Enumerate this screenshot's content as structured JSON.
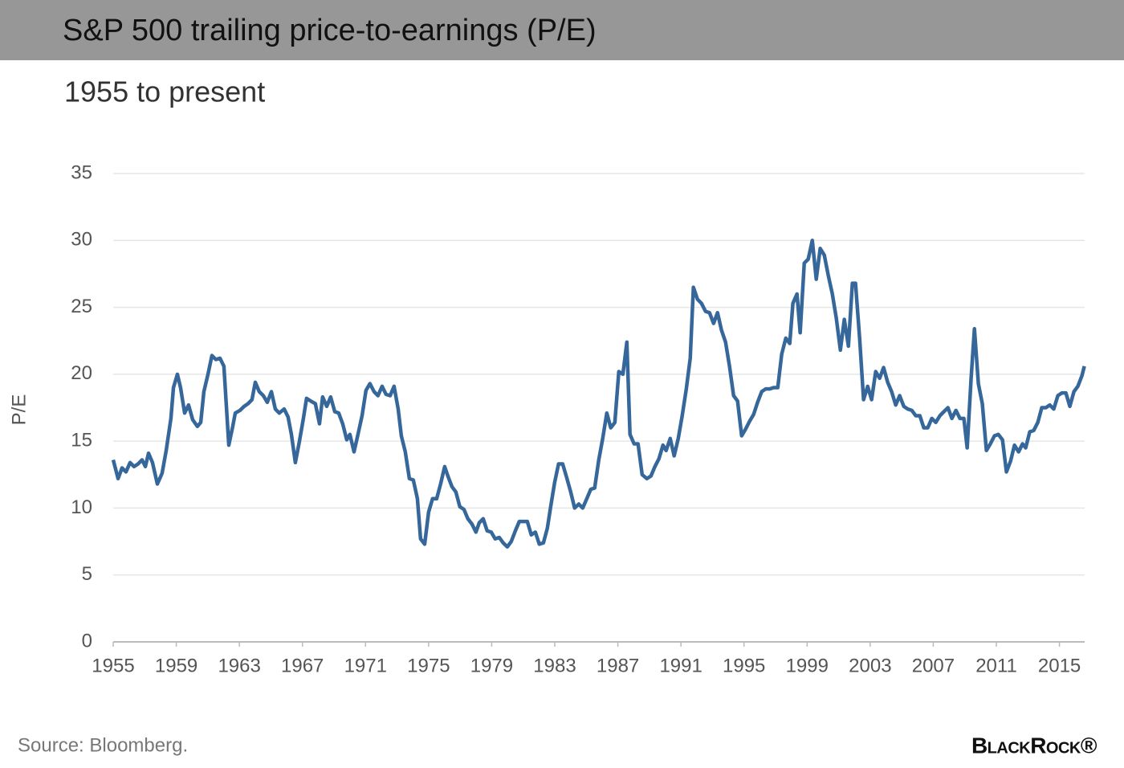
{
  "chart_data": {
    "type": "line",
    "title": "S&P 500 trailing price-to-earnings (P/E)",
    "subtitle": "1955 to present",
    "y_label": "P/E",
    "source": "Source: Bloomberg.",
    "logo": "BlackRock®",
    "grid": true,
    "xlim": [
      1955,
      2016.6
    ],
    "xticks": [
      1955,
      1959,
      1963,
      1967,
      1971,
      1975,
      1979,
      1983,
      1987,
      1991,
      1995,
      1999,
      2003,
      2007,
      2011,
      2015
    ],
    "ylim": [
      0,
      35
    ],
    "yticks": [
      0,
      5,
      10,
      15,
      20,
      25,
      30,
      35
    ],
    "x": [
      1955.0,
      1955.31,
      1955.56,
      1955.81,
      1956.07,
      1956.32,
      1956.58,
      1956.83,
      1957.04,
      1957.24,
      1957.49,
      1957.8,
      1958.1,
      1958.36,
      1958.66,
      1958.82,
      1959.07,
      1959.27,
      1959.53,
      1959.78,
      1960.04,
      1960.34,
      1960.55,
      1960.75,
      1961.01,
      1961.26,
      1961.51,
      1961.77,
      1962.02,
      1962.33,
      1962.58,
      1962.74,
      1963.04,
      1963.3,
      1963.55,
      1963.8,
      1964.01,
      1964.26,
      1964.52,
      1964.77,
      1965.03,
      1965.28,
      1965.53,
      1965.84,
      1966.09,
      1966.3,
      1966.55,
      1966.81,
      1967.06,
      1967.26,
      1967.52,
      1967.82,
      1968.08,
      1968.28,
      1968.54,
      1968.79,
      1969.05,
      1969.3,
      1969.55,
      1969.81,
      1970.01,
      1970.27,
      1970.52,
      1970.78,
      1971.03,
      1971.28,
      1971.54,
      1971.79,
      1972.05,
      1972.3,
      1972.56,
      1972.81,
      1973.07,
      1973.27,
      1973.52,
      1973.78,
      1974.03,
      1974.29,
      1974.49,
      1974.75,
      1975.0,
      1975.25,
      1975.51,
      1975.76,
      1976.02,
      1976.22,
      1976.48,
      1976.73,
      1976.98,
      1977.24,
      1977.49,
      1977.75,
      1978.0,
      1978.21,
      1978.46,
      1978.71,
      1978.97,
      1979.22,
      1979.48,
      1979.73,
      1979.99,
      1980.24,
      1980.5,
      1980.75,
      1981.01,
      1981.26,
      1981.51,
      1981.77,
      1982.02,
      1982.28,
      1982.53,
      1982.74,
      1982.99,
      1983.24,
      1983.5,
      1983.75,
      1984.01,
      1984.26,
      1984.52,
      1984.77,
      1985.03,
      1985.28,
      1985.53,
      1985.79,
      1986.04,
      1986.3,
      1986.55,
      1986.81,
      1987.06,
      1987.32,
      1987.57,
      1987.77,
      1988.03,
      1988.28,
      1988.54,
      1988.84,
      1989.1,
      1989.35,
      1989.61,
      1989.86,
      1990.06,
      1990.32,
      1990.57,
      1990.83,
      1991.08,
      1991.34,
      1991.59,
      1991.79,
      1992.05,
      1992.3,
      1992.56,
      1992.81,
      1993.07,
      1993.32,
      1993.57,
      1993.83,
      1994.08,
      1994.34,
      1994.59,
      1994.85,
      1995.1,
      1995.36,
      1995.61,
      1995.86,
      1996.12,
      1996.37,
      1996.63,
      1996.88,
      1997.14,
      1997.39,
      1997.65,
      1997.9,
      1998.1,
      1998.36,
      1998.56,
      1998.82,
      1999.07,
      1999.33,
      1999.58,
      1999.83,
      2000.09,
      2000.34,
      2000.6,
      2000.85,
      2001.11,
      2001.36,
      2001.62,
      2001.87,
      2002.07,
      2002.33,
      2002.58,
      2002.84,
      2003.09,
      2003.35,
      2003.6,
      2003.85,
      2004.11,
      2004.36,
      2004.62,
      2004.87,
      2005.13,
      2005.38,
      2005.64,
      2005.89,
      2006.15,
      2006.4,
      2006.65,
      2006.91,
      2007.16,
      2007.42,
      2007.67,
      2007.93,
      2008.18,
      2008.44,
      2008.69,
      2008.94,
      2009.15,
      2009.4,
      2009.61,
      2009.86,
      2010.11,
      2010.37,
      2010.62,
      2010.88,
      2011.13,
      2011.39,
      2011.64,
      2011.9,
      2012.15,
      2012.41,
      2012.66,
      2012.86,
      2013.12,
      2013.37,
      2013.63,
      2013.88,
      2014.14,
      2014.39,
      2014.64,
      2014.9,
      2015.15,
      2015.41,
      2015.66,
      2015.92,
      2016.17,
      2016.43,
      2016.58
    ],
    "series": [
      {
        "name": "P/E",
        "color": "#36679a",
        "values": [
          13.6,
          12.2,
          13.0,
          12.7,
          13.4,
          13.1,
          13.3,
          13.6,
          13.1,
          14.1,
          13.4,
          11.8,
          12.6,
          14.3,
          16.7,
          19.0,
          20.0,
          19.0,
          17.1,
          17.7,
          16.6,
          16.1,
          16.4,
          18.7,
          20.0,
          21.4,
          21.1,
          21.2,
          20.6,
          14.7,
          16.1,
          17.1,
          17.3,
          17.6,
          17.8,
          18.1,
          19.4,
          18.7,
          18.4,
          17.9,
          18.7,
          17.4,
          17.1,
          17.4,
          16.8,
          15.5,
          13.4,
          15.0,
          16.7,
          18.2,
          18.0,
          17.8,
          16.3,
          18.3,
          17.6,
          18.3,
          17.2,
          17.1,
          16.3,
          15.1,
          15.5,
          14.2,
          15.5,
          16.9,
          18.8,
          19.3,
          18.7,
          18.4,
          19.1,
          18.5,
          18.4,
          19.1,
          17.4,
          15.4,
          14.2,
          12.2,
          12.1,
          10.7,
          7.7,
          7.3,
          9.7,
          10.7,
          10.7,
          11.8,
          13.1,
          12.4,
          11.6,
          11.2,
          10.1,
          9.9,
          9.2,
          8.8,
          8.2,
          8.9,
          9.2,
          8.3,
          8.2,
          7.7,
          7.8,
          7.4,
          7.1,
          7.5,
          8.3,
          9.0,
          9.0,
          9.0,
          8.0,
          8.2,
          7.3,
          7.4,
          8.5,
          10.1,
          11.9,
          13.3,
          13.3,
          12.3,
          11.2,
          10.0,
          10.3,
          10.0,
          10.7,
          11.4,
          11.5,
          13.6,
          15.2,
          17.1,
          16.0,
          16.4,
          20.2,
          20.0,
          22.4,
          15.5,
          14.8,
          14.8,
          12.5,
          12.2,
          12.4,
          13.1,
          13.7,
          14.7,
          14.3,
          15.2,
          13.9,
          15.2,
          16.9,
          18.9,
          21.2,
          26.5,
          25.6,
          25.3,
          24.7,
          24.6,
          23.8,
          24.6,
          23.3,
          22.4,
          20.6,
          18.4,
          18.0,
          15.4,
          15.9,
          16.5,
          17.0,
          17.9,
          18.7,
          18.9,
          18.9,
          19.0,
          19.0,
          21.5,
          22.7,
          22.3,
          25.3,
          26.0,
          23.1,
          28.3,
          28.6,
          30.0,
          27.1,
          29.4,
          28.9,
          27.4,
          26.0,
          24.2,
          21.8,
          24.1,
          22.1,
          26.8,
          26.8,
          22.7,
          18.1,
          19.1,
          18.1,
          20.2,
          19.7,
          20.5,
          19.4,
          18.7,
          17.7,
          18.4,
          17.6,
          17.4,
          17.3,
          16.9,
          16.9,
          16.0,
          16.0,
          16.7,
          16.4,
          16.9,
          17.2,
          17.5,
          16.7,
          17.3,
          16.7,
          16.7,
          14.5,
          19.7,
          23.4,
          19.3,
          17.8,
          14.3,
          14.8,
          15.4,
          15.5,
          15.1,
          12.7,
          13.5,
          14.7,
          14.2,
          14.8,
          14.5,
          15.7,
          15.8,
          16.4,
          17.5,
          17.5,
          17.7,
          17.4,
          18.4,
          18.6,
          18.6,
          17.6,
          18.7,
          19.1,
          19.9,
          20.6
        ]
      }
    ]
  }
}
